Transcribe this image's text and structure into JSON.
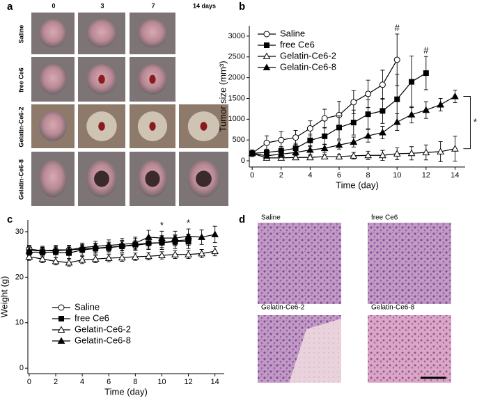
{
  "panel_labels": [
    "a",
    "b",
    "c",
    "d"
  ],
  "panel_a": {
    "columns": [
      "0",
      "3",
      "7",
      "14 days"
    ],
    "rows": [
      "Saline",
      "free Ce6",
      "Gelatin-Ce6-2",
      "Gelatin-Ce6-8"
    ]
  },
  "panel_d": {
    "labels": [
      "Saline",
      "free Ce6",
      "Gelatin-Ce6-2",
      "Gelatin-Ce6-8"
    ]
  },
  "chart_data": [
    {
      "type": "line",
      "xlabel": "Time (day)",
      "ylabel": "Tumor size (mm³)",
      "x": [
        0,
        1,
        2,
        3,
        4,
        5,
        6,
        7,
        8,
        9,
        10,
        11,
        12,
        13,
        14
      ],
      "xlim": [
        -0.2,
        14.7
      ],
      "ylim": [
        -150,
        3250
      ],
      "xticks": [
        0,
        2,
        4,
        6,
        8,
        10,
        12,
        14
      ],
      "yticks": [
        0,
        500,
        1000,
        1500,
        2000,
        2500,
        3000
      ],
      "legend": "upper left",
      "series": [
        {
          "name": "Saline",
          "color": "#000000",
          "marker": "circle-open",
          "values": [
            180,
            430,
            500,
            560,
            780,
            1020,
            1100,
            1410,
            1610,
            1830,
            2430,
            null,
            null,
            null,
            null
          ],
          "errors": [
            80,
            170,
            200,
            170,
            180,
            220,
            330,
            280,
            330,
            350,
            620,
            null,
            null,
            null,
            null
          ]
        },
        {
          "name": "free Ce6",
          "color": "#000000",
          "marker": "square-filled",
          "values": [
            180,
            200,
            240,
            300,
            490,
            590,
            800,
            920,
            1120,
            1200,
            1480,
            1900,
            2110,
            null,
            null
          ],
          "errors": [
            50,
            80,
            100,
            120,
            150,
            200,
            280,
            300,
            350,
            300,
            600,
            620,
            400,
            null,
            null
          ]
        },
        {
          "name": "Gelatin-Ce6-2",
          "color": "#000000",
          "marker": "triangle-open",
          "values": [
            180,
            70,
            70,
            80,
            80,
            100,
            100,
            120,
            130,
            130,
            170,
            180,
            200,
            220,
            290
          ],
          "errors": [
            40,
            40,
            40,
            40,
            40,
            50,
            60,
            80,
            100,
            120,
            140,
            160,
            180,
            240,
            300
          ]
        },
        {
          "name": "Gelatin-Ce6-8",
          "color": "#000000",
          "marker": "triangle-filled",
          "values": [
            180,
            120,
            160,
            200,
            260,
            300,
            380,
            450,
            600,
            680,
            930,
            1110,
            1220,
            1350,
            1550
          ],
          "errors": [
            40,
            60,
            80,
            80,
            100,
            100,
            100,
            120,
            150,
            150,
            200,
            200,
            200,
            150,
            150
          ]
        }
      ],
      "annotations": [
        {
          "text": "#",
          "x": 10
        },
        {
          "text": "#",
          "x": 12
        }
      ],
      "significance": {
        "text": "*"
      }
    },
    {
      "type": "line",
      "xlabel": "Time (day)",
      "ylabel": "Weight (g)",
      "x": [
        0,
        1,
        2,
        3,
        4,
        5,
        6,
        7,
        8,
        9,
        10,
        11,
        12,
        13,
        14
      ],
      "xlim": [
        -0.1,
        14.7
      ],
      "ylim": [
        -1.2,
        32.6
      ],
      "xticks": [
        0,
        2,
        4,
        6,
        8,
        10,
        12,
        14
      ],
      "yticks": [
        0,
        10,
        20,
        30
      ],
      "legend": "lower left",
      "series": [
        {
          "name": "Saline",
          "color": "#000000",
          "marker": "circle-open",
          "values": [
            26.2,
            25.8,
            25.8,
            26,
            26.2,
            26.4,
            26.6,
            26.8,
            27,
            27.4,
            27.6,
            28,
            28.2,
            null,
            null
          ],
          "errors": [
            0.8,
            0.8,
            0.8,
            0.8,
            0.8,
            0.9,
            0.9,
            1,
            1,
            1,
            1.1,
            1.1,
            1.2,
            null,
            null
          ]
        },
        {
          "name": "free Ce6",
          "color": "#000000",
          "marker": "square-filled",
          "values": [
            25.5,
            25.5,
            25.5,
            25.3,
            26,
            26.3,
            26.5,
            26.8,
            27.2,
            27.5,
            27.6,
            27.8,
            27.8,
            null,
            null
          ],
          "errors": [
            1,
            1,
            1.2,
            1.2,
            1.2,
            1.2,
            1.2,
            1.3,
            1.3,
            1.4,
            1.5,
            1.5,
            1.5,
            null,
            null
          ]
        },
        {
          "name": "Gelatin-Ce6-2",
          "color": "#000000",
          "marker": "triangle-open",
          "values": [
            24.5,
            24,
            23.5,
            23.2,
            23.8,
            24,
            24.2,
            24.3,
            24.5,
            24.6,
            24.8,
            25,
            25,
            25.2,
            25.7
          ],
          "errors": [
            0.8,
            0.8,
            0.8,
            0.8,
            0.8,
            0.8,
            0.8,
            0.8,
            0.8,
            0.8,
            0.8,
            0.9,
            0.9,
            0.9,
            1
          ]
        },
        {
          "name": "Gelatin-Ce6-8",
          "color": "#000000",
          "marker": "triangle-filled",
          "values": [
            25.8,
            25.8,
            26,
            26,
            26.5,
            26.8,
            27,
            27.2,
            27.5,
            28.8,
            28.6,
            28.6,
            29,
            28.8,
            29.4
          ],
          "errors": [
            1,
            1,
            1,
            1,
            1,
            1.1,
            1.2,
            1.3,
            1.3,
            1.5,
            1.5,
            1.5,
            1.6,
            1.6,
            1.8
          ]
        }
      ],
      "annotations": [
        {
          "text": "*",
          "x": 10
        },
        {
          "text": "*",
          "x": 12
        }
      ]
    }
  ]
}
